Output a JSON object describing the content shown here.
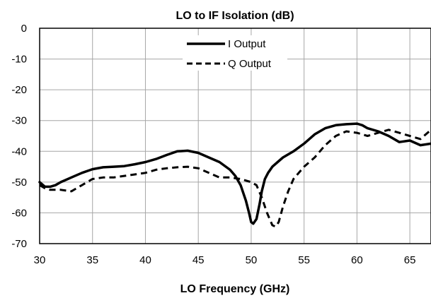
{
  "chart_data": {
    "type": "line",
    "title": "LO to IF Isolation (dB)",
    "xlabel": "LO Frequency (GHz)",
    "ylabel": "",
    "xlim": [
      30,
      67
    ],
    "ylim": [
      -70,
      0
    ],
    "xticks": [
      30,
      35,
      40,
      45,
      50,
      55,
      60,
      65
    ],
    "yticks": [
      0,
      -10,
      -20,
      -30,
      -40,
      -50,
      -60,
      -70
    ],
    "grid": true,
    "legend_position": "top-center",
    "series": [
      {
        "name": "I Output",
        "style": "solid",
        "color": "#000000",
        "x": [
          30,
          30.5,
          31,
          31.5,
          32,
          33,
          34,
          35,
          36,
          37,
          38,
          39,
          40,
          41,
          42,
          43,
          44,
          45,
          46,
          47,
          48,
          48.5,
          49,
          49.5,
          49.8,
          50,
          50.2,
          50.5,
          50.8,
          51,
          51.3,
          51.6,
          52,
          52.5,
          53,
          54,
          55,
          56,
          57,
          58,
          59,
          60,
          60.5,
          61,
          62,
          63,
          64,
          65,
          66,
          67
        ],
        "values": [
          -50,
          -51.5,
          -51.5,
          -51,
          -50,
          -48.5,
          -47,
          -45.8,
          -45.2,
          -45,
          -44.8,
          -44.2,
          -43.5,
          -42.5,
          -41.2,
          -40,
          -39.8,
          -40.5,
          -42,
          -43.5,
          -46,
          -48,
          -51,
          -56,
          -60,
          -63,
          -63.5,
          -62,
          -57,
          -53,
          -49,
          -47,
          -45,
          -43.5,
          -42,
          -40,
          -37.5,
          -34.5,
          -32.5,
          -31.5,
          -31.2,
          -31,
          -31.5,
          -32.5,
          -33.5,
          -35,
          -37,
          -36.5,
          -38,
          -37.5
        ]
      },
      {
        "name": "Q Output",
        "style": "dashed",
        "color": "#000000",
        "x": [
          30,
          30.5,
          31,
          32,
          33,
          34,
          35,
          36,
          37,
          38,
          39,
          40,
          41,
          42,
          43,
          44,
          45,
          46,
          47,
          48,
          49,
          50,
          50.5,
          51,
          51.5,
          52,
          52.3,
          52.6,
          53,
          53.5,
          54,
          55,
          56,
          57,
          58,
          59,
          60,
          61,
          62,
          63,
          64,
          65,
          66,
          67
        ],
        "values": [
          -51,
          -52,
          -52.5,
          -52.5,
          -53,
          -51,
          -49,
          -48.5,
          -48.5,
          -48,
          -47.5,
          -47,
          -46,
          -45.5,
          -45.2,
          -45,
          -45.5,
          -47,
          -48.5,
          -48.5,
          -49,
          -50,
          -51,
          -55,
          -60,
          -64,
          -64.5,
          -63,
          -58,
          -53,
          -49,
          -45,
          -42,
          -38,
          -35,
          -33.5,
          -34,
          -35,
          -34,
          -33,
          -34,
          -35,
          -36,
          -33
        ]
      }
    ]
  }
}
